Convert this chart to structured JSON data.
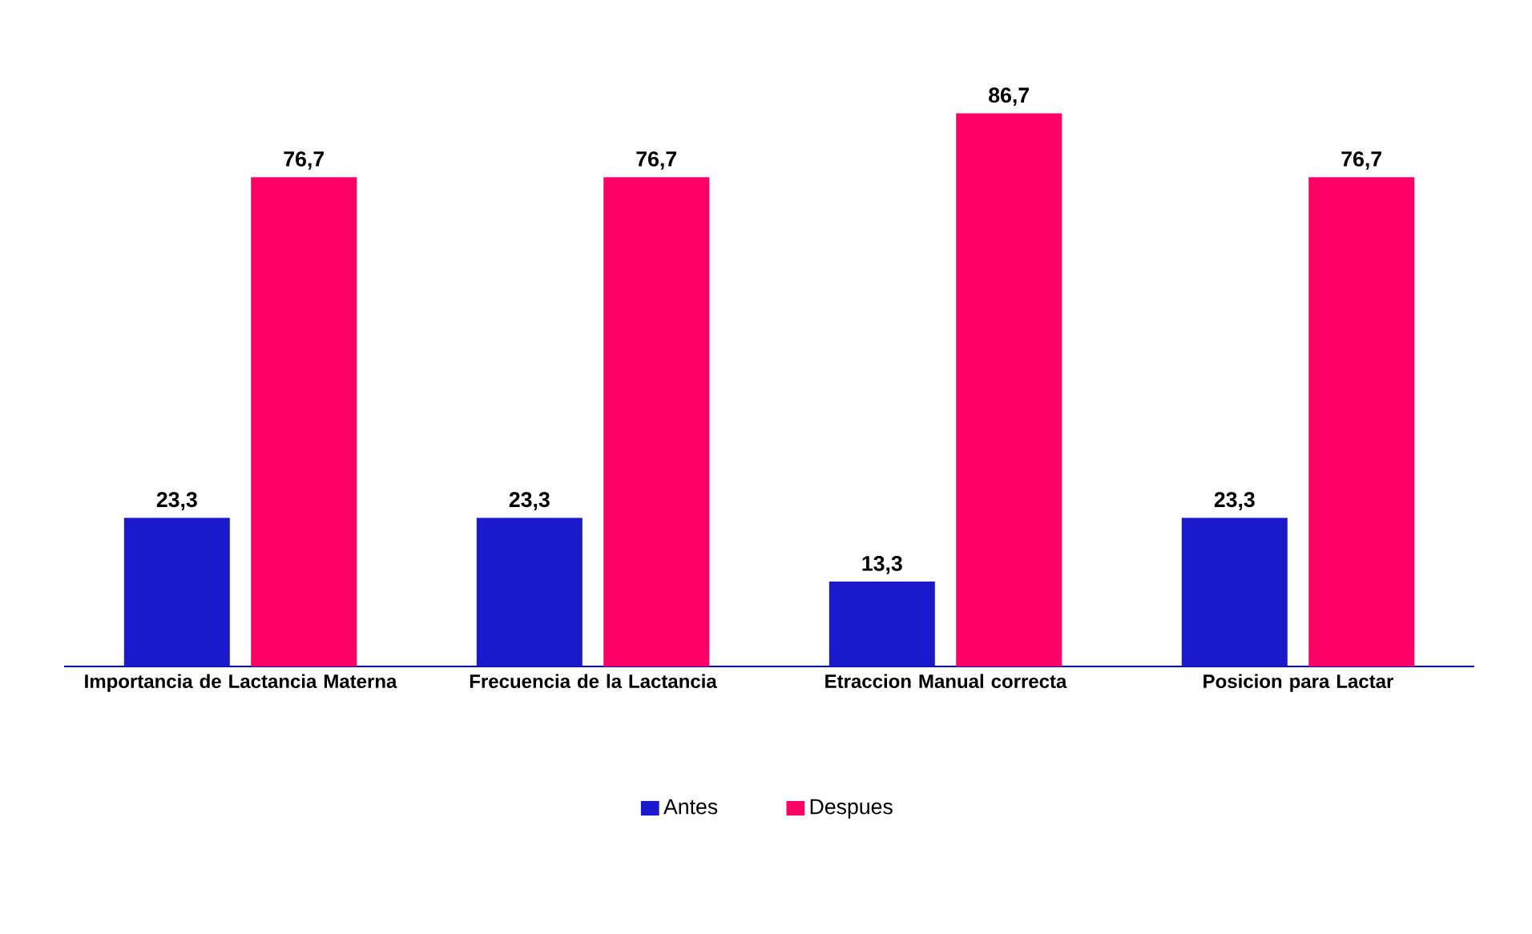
{
  "chart_data": {
    "type": "bar",
    "categories": [
      "Importancia de Lactancia Materna",
      "Frecuencia de la Lactancia",
      "Etraccion Manual correcta",
      "Posicion para Lactar"
    ],
    "series": [
      {
        "name": "Antes",
        "color": "#1a1acc",
        "values": [
          23.3,
          23.3,
          13.3,
          23.3
        ],
        "value_labels": [
          "23,3",
          "23,3",
          "13,3",
          "23,3"
        ]
      },
      {
        "name": "Despues",
        "color": "#ff0066",
        "values": [
          76.7,
          76.7,
          86.7,
          76.7
        ],
        "value_labels": [
          "76,7",
          "76,7",
          "86,7",
          "76,7"
        ]
      }
    ],
    "legend": "bottom"
  }
}
